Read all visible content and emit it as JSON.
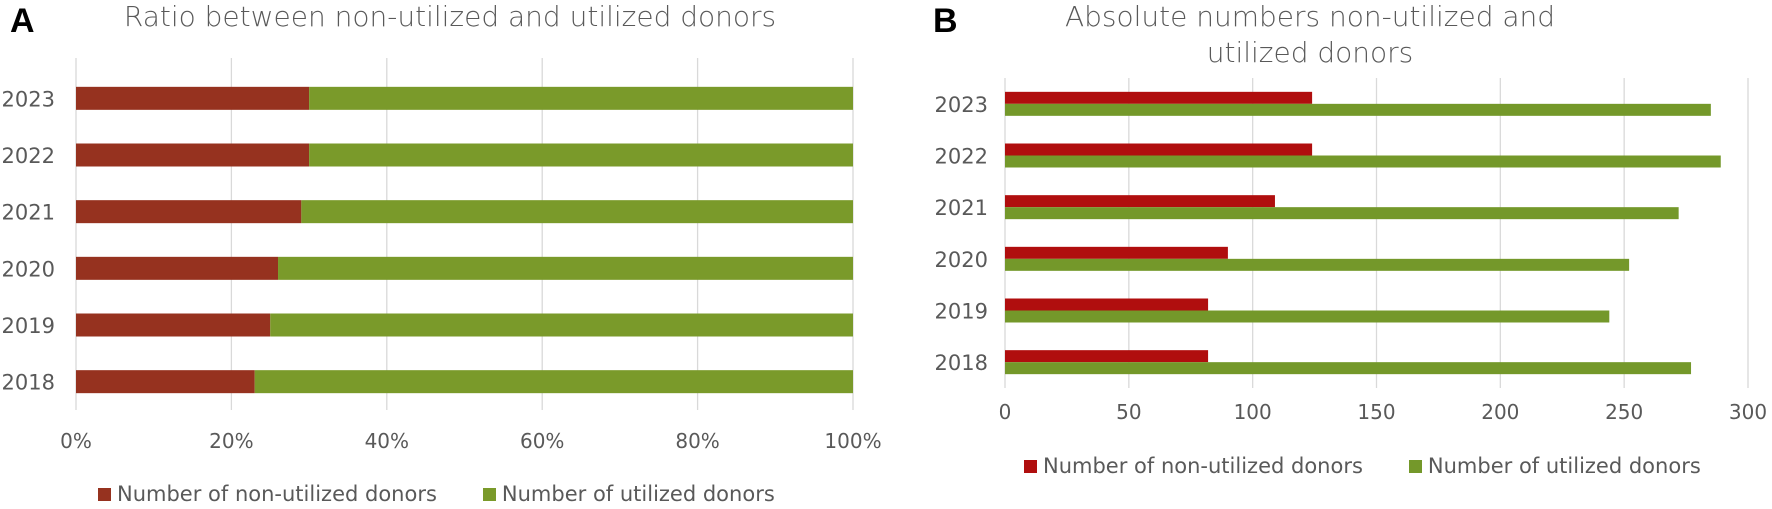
{
  "panels": {
    "a": {
      "letter": "A"
    },
    "b": {
      "letter": "B"
    }
  },
  "colors": {
    "a_non_utilized": "#96321F",
    "a_utilized": "#7A9A2A",
    "b_non_utilized": "#B00E0E",
    "b_utilized": "#74982A",
    "grid": "#D9D9D9",
    "text": "#595959"
  },
  "chart_data": [
    {
      "type": "bar",
      "orientation": "horizontal",
      "stacked": "percent",
      "title": "Ratio between non-utilized and utilized donors",
      "categories": [
        "2023",
        "2022",
        "2021",
        "2020",
        "2019",
        "2018"
      ],
      "series": [
        {
          "name": "Number of non-utilized donors",
          "values": [
            30,
            30,
            29,
            26,
            25,
            23
          ]
        },
        {
          "name": "Number of utilized donors",
          "values": [
            70,
            70,
            71,
            74,
            75,
            77
          ]
        }
      ],
      "xlim": [
        0,
        100
      ],
      "xticks": [
        "0%",
        "20%",
        "40%",
        "60%",
        "80%",
        "100%"
      ],
      "grid": true,
      "legend": "bottom"
    },
    {
      "type": "bar",
      "orientation": "horizontal",
      "title": "Absolute numbers non-utilized and utilized donors",
      "categories": [
        "2023",
        "2022",
        "2021",
        "2020",
        "2019",
        "2018"
      ],
      "series": [
        {
          "name": "Number of non-utilized donors",
          "values": [
            124,
            124,
            109,
            90,
            82,
            82
          ]
        },
        {
          "name": "Number of utilized donors",
          "values": [
            285,
            289,
            272,
            252,
            244,
            277
          ]
        }
      ],
      "xlim": [
        0,
        300
      ],
      "xticks": [
        "0",
        "50",
        "100",
        "150",
        "200",
        "250",
        "300"
      ],
      "grid": true,
      "legend": "bottom"
    }
  ]
}
